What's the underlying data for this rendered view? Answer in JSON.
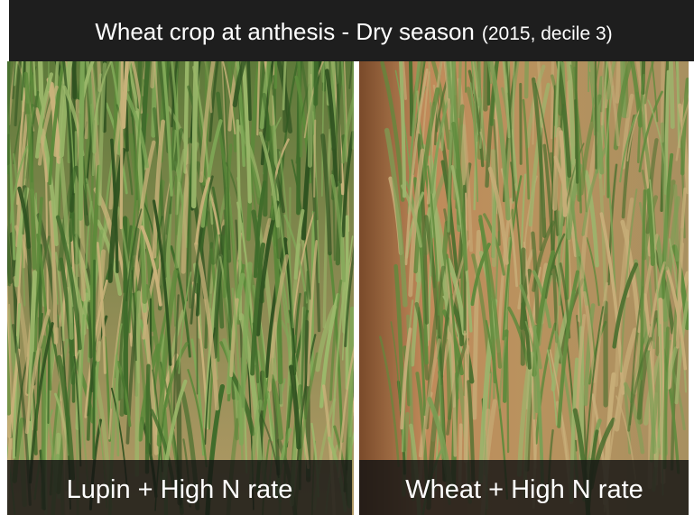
{
  "header": {
    "title": "Wheat crop at anthesis - Dry season",
    "subtitle": "(2015, decile 3)"
  },
  "panels": [
    {
      "caption": "Lupin + High N rate"
    },
    {
      "caption": "Wheat + High N rate"
    }
  ]
}
